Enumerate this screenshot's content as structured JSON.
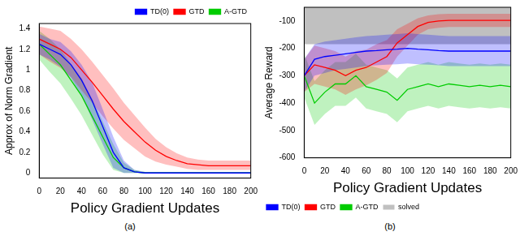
{
  "chart_data": [
    {
      "type": "line",
      "caption": "(a)",
      "x_label": "Policy Gradient Updates",
      "y_label": "Approx of Norm Gradient",
      "x": [
        0,
        10,
        20,
        30,
        40,
        50,
        60,
        70,
        80,
        90,
        100,
        110,
        120,
        130,
        140,
        150,
        160,
        170,
        180,
        190,
        200
      ],
      "xlim": [
        0,
        200
      ],
      "xticks": [
        0,
        20,
        40,
        60,
        80,
        100,
        120,
        140,
        160,
        180,
        200
      ],
      "ylim": [
        -0.05,
        1.45
      ],
      "yticks": [
        0,
        0.2,
        0.4,
        0.6,
        0.8,
        1,
        1.2,
        1.4
      ],
      "grid": false,
      "legend": "upper right",
      "series": [
        {
          "name": "TD(0)",
          "color": "#0000ff",
          "values": [
            1.25,
            1.2,
            1.15,
            1.05,
            0.9,
            0.7,
            0.45,
            0.2,
            0.05,
            0.01,
            0,
            0,
            0,
            0,
            0,
            0,
            0,
            0,
            0,
            0,
            0
          ],
          "lower": [
            1.15,
            1.1,
            1.03,
            0.92,
            0.75,
            0.52,
            0.28,
            0.05,
            0,
            0,
            0,
            0,
            0,
            0,
            0,
            0,
            0,
            0,
            0,
            0,
            0
          ],
          "upper": [
            1.35,
            1.3,
            1.27,
            1.18,
            1.05,
            0.88,
            0.62,
            0.35,
            0.12,
            0.03,
            0.01,
            0.01,
            0.01,
            0.01,
            0.01,
            0.01,
            0.01,
            0.01,
            0.01,
            0.01,
            0.01
          ]
        },
        {
          "name": "GTD",
          "color": "#ff0000",
          "values": [
            1.3,
            1.25,
            1.2,
            1.12,
            1,
            0.88,
            0.75,
            0.62,
            0.5,
            0.4,
            0.3,
            0.22,
            0.16,
            0.12,
            0.09,
            0.08,
            0.07,
            0.07,
            0.07,
            0.07,
            0.07
          ],
          "lower": [
            1.15,
            1.08,
            1.02,
            0.93,
            0.8,
            0.68,
            0.55,
            0.43,
            0.32,
            0.24,
            0.16,
            0.11,
            0.08,
            0.06,
            0.04,
            0.03,
            0.03,
            0.03,
            0.03,
            0.03,
            0.03
          ],
          "upper": [
            1.42,
            1.4,
            1.38,
            1.3,
            1.2,
            1.08,
            0.95,
            0.82,
            0.68,
            0.56,
            0.44,
            0.33,
            0.25,
            0.19,
            0.15,
            0.13,
            0.12,
            0.12,
            0.12,
            0.12,
            0.12
          ]
        },
        {
          "name": "A-GTD",
          "color": "#00cc00",
          "values": [
            1.25,
            1.15,
            1.05,
            0.9,
            0.75,
            0.55,
            0.35,
            0.15,
            0.05,
            0.01,
            0,
            0,
            0,
            0,
            0,
            0,
            0,
            0,
            0,
            0,
            0
          ],
          "lower": [
            1.1,
            0.98,
            0.87,
            0.72,
            0.56,
            0.37,
            0.18,
            0.03,
            0,
            0,
            0,
            0,
            0,
            0,
            0,
            0,
            0,
            0,
            0,
            0,
            0
          ],
          "upper": [
            1.38,
            1.3,
            1.2,
            1.06,
            0.92,
            0.72,
            0.5,
            0.28,
            0.1,
            0.03,
            0.01,
            0.01,
            0.01,
            0.01,
            0.01,
            0.01,
            0.01,
            0.01,
            0.01,
            0.01,
            0.01
          ]
        }
      ]
    },
    {
      "type": "line",
      "caption": "(b)",
      "x_label": "Policy Gradient Updates",
      "y_label": "Average Reward",
      "x": [
        0,
        10,
        20,
        30,
        40,
        50,
        60,
        70,
        80,
        90,
        100,
        110,
        120,
        130,
        140,
        150,
        160,
        170,
        180,
        190,
        200
      ],
      "xlim": [
        0,
        200
      ],
      "xticks": [
        0,
        20,
        40,
        60,
        80,
        100,
        120,
        140,
        160,
        180,
        200
      ],
      "ylim": [
        -600,
        -50
      ],
      "yticks": [
        -600,
        -500,
        -400,
        -300,
        -200,
        -100
      ],
      "grid": false,
      "legend": "lower left",
      "series": [
        {
          "name": "TD(0)",
          "color": "#0000ff",
          "values": [
            -300,
            -240,
            -230,
            -225,
            -220,
            -215,
            -210,
            -208,
            -205,
            -203,
            -200,
            -203,
            -205,
            -208,
            -210,
            -210,
            -210,
            -210,
            -210,
            -210,
            -210
          ],
          "lower": [
            -360,
            -300,
            -290,
            -280,
            -275,
            -270,
            -265,
            -262,
            -260,
            -258,
            -255,
            -258,
            -260,
            -262,
            -265,
            -265,
            -265,
            -265,
            -265,
            -265,
            -265
          ],
          "upper": [
            -240,
            -185,
            -175,
            -170,
            -165,
            -160,
            -155,
            -153,
            -150,
            -148,
            -145,
            -148,
            -150,
            -153,
            -155,
            -155,
            -155,
            -155,
            -155,
            -155,
            -155
          ]
        },
        {
          "name": "GTD",
          "color": "#ff0000",
          "values": [
            -300,
            -260,
            -270,
            -280,
            -300,
            -280,
            -270,
            -250,
            -230,
            -180,
            -150,
            -120,
            -105,
            -100,
            -98,
            -98,
            -98,
            -98,
            -98,
            -98,
            -98
          ],
          "lower": [
            -360,
            -330,
            -340,
            -350,
            -370,
            -350,
            -335,
            -315,
            -290,
            -230,
            -190,
            -150,
            -130,
            -125,
            -122,
            -122,
            -122,
            -122,
            -122,
            -122,
            -122
          ],
          "upper": [
            -240,
            -190,
            -200,
            -210,
            -230,
            -210,
            -205,
            -185,
            -170,
            -130,
            -110,
            -90,
            -80,
            -75,
            -74,
            -74,
            -74,
            -74,
            -74,
            -74,
            -74
          ]
        },
        {
          "name": "A-GTD",
          "color": "#00cc00",
          "values": [
            -300,
            -400,
            -360,
            -330,
            -330,
            -300,
            -340,
            -350,
            -360,
            -390,
            -350,
            -340,
            -330,
            -340,
            -330,
            -335,
            -340,
            -335,
            -340,
            -335,
            -340
          ],
          "lower": [
            -380,
            -480,
            -440,
            -410,
            -410,
            -380,
            -420,
            -430,
            -440,
            -470,
            -430,
            -420,
            -410,
            -420,
            -410,
            -415,
            -420,
            -415,
            -420,
            -415,
            -420
          ],
          "upper": [
            -220,
            -320,
            -280,
            -250,
            -250,
            -220,
            -260,
            -270,
            -280,
            -310,
            -270,
            -260,
            -250,
            -260,
            -250,
            -255,
            -260,
            -255,
            -260,
            -255,
            -260
          ]
        },
        {
          "name": "solved",
          "color": "#c0c0c0",
          "type": "area",
          "x": [
            0,
            200
          ],
          "values": [
            -50,
            -50
          ],
          "lower": [
            -185,
            -185
          ]
        }
      ]
    }
  ]
}
